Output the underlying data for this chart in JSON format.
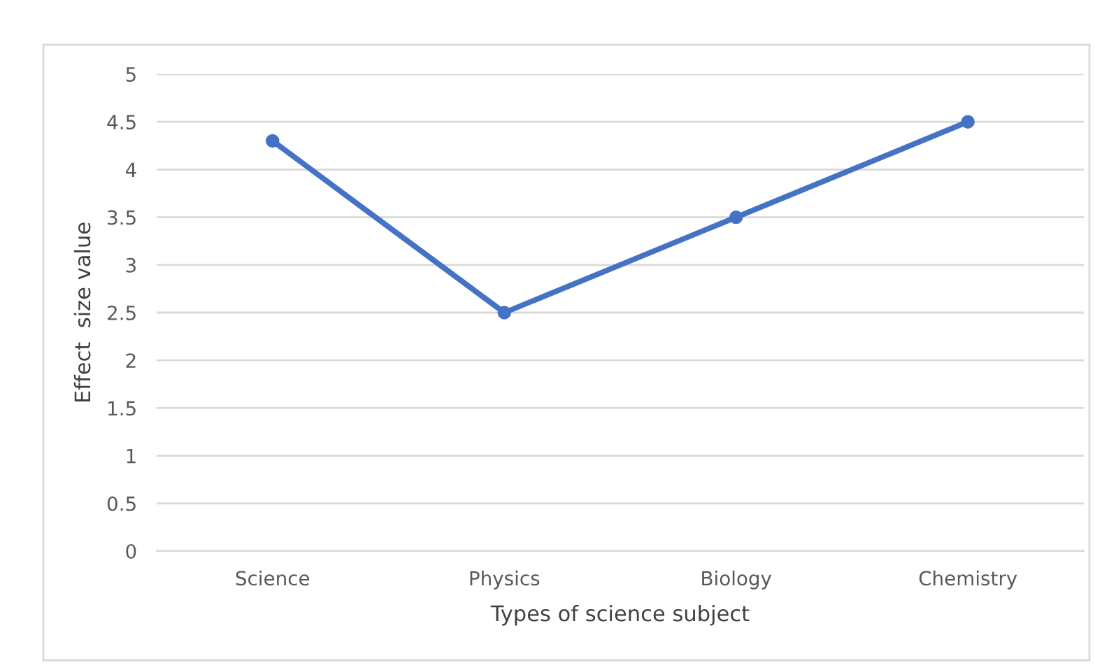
{
  "chart_data": {
    "type": "line",
    "xlabel": "Types of science subject",
    "ylabel": "Effect  size value",
    "categories": [
      "Science",
      "Physics",
      "Biology",
      "Chemistry"
    ],
    "series": [
      {
        "color": "#4472c4",
        "values": [
          4.3,
          2.5,
          3.5,
          4.5
        ]
      }
    ],
    "ylim": [
      0,
      5
    ],
    "yticks": [
      0,
      0.5,
      1,
      1.5,
      2,
      2.5,
      3,
      3.5,
      4,
      4.5,
      5
    ],
    "grid": "y",
    "marker": "circle",
    "line_style": "solid"
  }
}
